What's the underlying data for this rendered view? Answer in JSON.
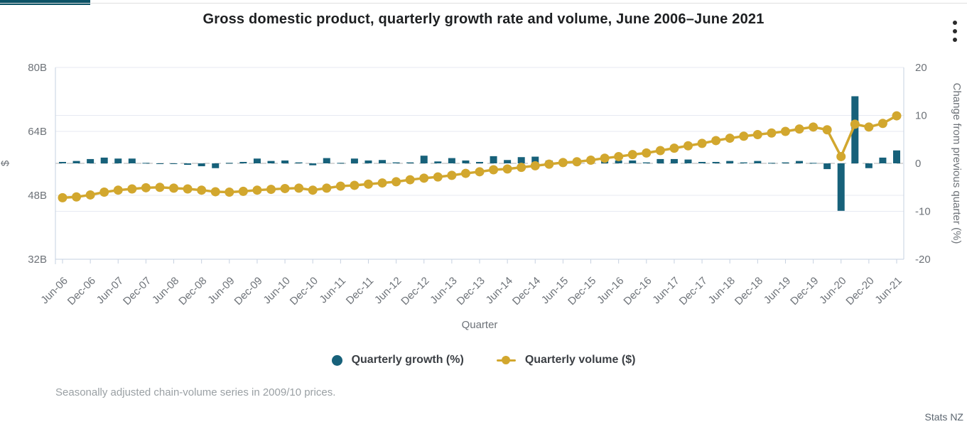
{
  "header": {
    "title": "Gross domestic product, quarterly growth rate and volume, June 2006–June 2021",
    "menu_icon": "kebab-menu-icon"
  },
  "chart_data": {
    "type": "bar",
    "subtype": "dual-axis combo: bars (right axis) + line with circle markers (left axis)",
    "title": "Gross domestic product, quarterly growth rate and volume, June 2006–June 2021",
    "xlabel": "Quarter",
    "grid": "horizontal light gridlines, dashed zero line on right axis",
    "legend_position": "bottom center",
    "x_axis": {
      "title": "Quarter",
      "tick_every_n_points": 2,
      "tick_labels": [
        "Jun-06",
        "Dec-06",
        "Jun-07",
        "Dec-07",
        "Jun-08",
        "Dec-08",
        "Jun-09",
        "Dec-09",
        "Jun-10",
        "Dec-10",
        "Jun-11",
        "Dec-11",
        "Jun-12",
        "Dec-12",
        "Jun-13",
        "Dec-13",
        "Jun-14",
        "Dec-14",
        "Jun-15",
        "Dec-15",
        "Jun-16",
        "Dec-16",
        "Jun-17",
        "Dec-17",
        "Jun-18",
        "Dec-18",
        "Jun-19",
        "Dec-19",
        "Jun-20",
        "Dec-20",
        "Jun-21"
      ]
    },
    "left_axis": {
      "title": "$",
      "tick_values": [
        32,
        48,
        64,
        80
      ],
      "tick_labels": [
        "32B",
        "48B",
        "64B",
        "80B"
      ],
      "range_billions": [
        32,
        80
      ]
    },
    "right_axis": {
      "title": "Change from previous quarter (%)",
      "tick_values": [
        -20,
        -10,
        0,
        10,
        20
      ],
      "tick_labels": [
        "-20",
        "-10",
        "0",
        "10",
        "20"
      ],
      "range": [
        -20,
        20
      ],
      "zero_line": "dashed"
    },
    "categories": [
      "Jun-06",
      "Sep-06",
      "Dec-06",
      "Mar-07",
      "Jun-07",
      "Sep-07",
      "Dec-07",
      "Mar-08",
      "Jun-08",
      "Sep-08",
      "Dec-08",
      "Mar-09",
      "Jun-09",
      "Sep-09",
      "Dec-09",
      "Mar-10",
      "Jun-10",
      "Sep-10",
      "Dec-10",
      "Mar-11",
      "Jun-11",
      "Sep-11",
      "Dec-11",
      "Mar-12",
      "Jun-12",
      "Sep-12",
      "Dec-12",
      "Mar-13",
      "Jun-13",
      "Sep-13",
      "Dec-13",
      "Mar-14",
      "Jun-14",
      "Sep-14",
      "Dec-14",
      "Mar-15",
      "Jun-15",
      "Sep-15",
      "Dec-15",
      "Mar-16",
      "Jun-16",
      "Sep-16",
      "Dec-16",
      "Mar-17",
      "Jun-17",
      "Sep-17",
      "Dec-17",
      "Mar-18",
      "Jun-18",
      "Sep-18",
      "Dec-18",
      "Mar-19",
      "Jun-19",
      "Sep-19",
      "Dec-19",
      "Mar-20",
      "Jun-20",
      "Sep-20",
      "Dec-20",
      "Mar-21",
      "Jun-21"
    ],
    "series": [
      {
        "name": "Quarterly growth (%)",
        "type": "bar",
        "axis": "right",
        "unit": "percent",
        "color": "#17617a",
        "values": [
          0.3,
          0.5,
          0.9,
          1.2,
          1.0,
          1.0,
          0.1,
          0.0,
          -0.1,
          -0.3,
          -0.6,
          -1.0,
          0.1,
          0.3,
          1.0,
          0.5,
          0.6,
          0.2,
          -0.4,
          1.1,
          0.1,
          1.0,
          0.6,
          0.7,
          0.2,
          0.2,
          1.6,
          0.4,
          1.1,
          0.6,
          0.3,
          1.5,
          0.7,
          1.3,
          1.4,
          0.6,
          0.6,
          0.8,
          0.8,
          0.8,
          0.6,
          0.6,
          0.2,
          0.9,
          0.9,
          0.8,
          0.3,
          0.3,
          0.5,
          0.2,
          0.5,
          0.1,
          0.2,
          0.5,
          0.1,
          -1.2,
          -9.9,
          14.0,
          -1.0,
          1.2,
          2.7
        ]
      },
      {
        "name": "Quarterly volume ($)",
        "type": "line",
        "axis": "left",
        "unit": "billions NZD",
        "color": "#d2a72e",
        "values": [
          47.4,
          47.6,
          48.1,
          48.8,
          49.3,
          49.6,
          49.9,
          50.0,
          49.8,
          49.6,
          49.3,
          48.9,
          48.8,
          49.0,
          49.3,
          49.5,
          49.7,
          49.8,
          49.3,
          49.8,
          50.3,
          50.5,
          50.8,
          51.1,
          51.4,
          51.9,
          52.3,
          52.6,
          53.0,
          53.5,
          53.9,
          54.4,
          54.6,
          55.0,
          55.4,
          55.8,
          56.2,
          56.4,
          56.8,
          57.3,
          57.7,
          58.2,
          58.6,
          59.2,
          59.8,
          60.4,
          61.0,
          61.7,
          62.3,
          62.8,
          63.2,
          63.6,
          64.0,
          64.6,
          65.1,
          64.4,
          57.7,
          65.8,
          65.1,
          66.0,
          67.9
        ]
      }
    ]
  },
  "legend": {
    "items": [
      {
        "label": "Quarterly growth (%)",
        "marker": "circle",
        "color": "#17617a"
      },
      {
        "label": "Quarterly volume ($)",
        "marker": "line-dot",
        "color": "#d2a72e"
      }
    ]
  },
  "footnote": "Seasonally adjusted chain-volume series in 2009/10 prices.",
  "source": "Stats NZ",
  "colors": {
    "bar_teal": "#17617a",
    "line_gold": "#d2a72e",
    "accent_bar": "#0c5266",
    "grid": "#e7eaf2",
    "zero_line": "#d8d8d8",
    "axis_spine": "#c6d1e0",
    "tick_text": "#6d7278",
    "title_text": "#1d1f21",
    "legend_text": "#3b3f44",
    "footnote_text": "#9aa0a4",
    "source_text": "#5c6670"
  }
}
